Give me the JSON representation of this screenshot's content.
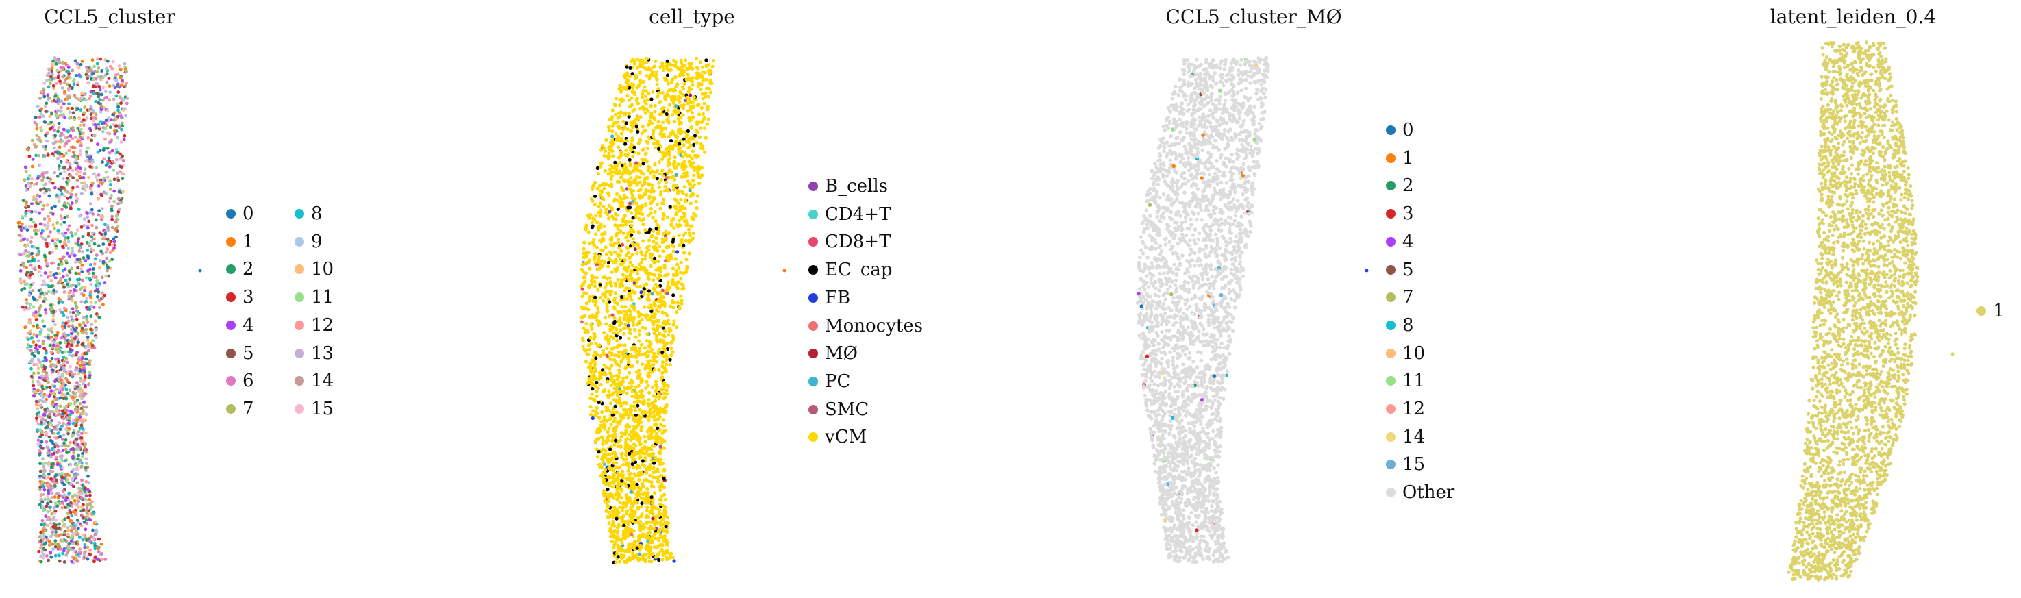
{
  "chart_data": [
    {
      "type": "scatter",
      "title": "CCL5_cluster",
      "legend_columns": 2,
      "legend": [
        {
          "label": "0",
          "color": "#1f77b4"
        },
        {
          "label": "1",
          "color": "#ff7f0e"
        },
        {
          "label": "2",
          "color": "#279e68"
        },
        {
          "label": "3",
          "color": "#d62728"
        },
        {
          "label": "4",
          "color": "#aa40fc"
        },
        {
          "label": "5",
          "color": "#8c564b"
        },
        {
          "label": "6",
          "color": "#e377c2"
        },
        {
          "label": "7",
          "color": "#b5bd61"
        },
        {
          "label": "8",
          "color": "#17becf"
        },
        {
          "label": "9",
          "color": "#aec7e8"
        },
        {
          "label": "10",
          "color": "#ffbb78"
        },
        {
          "label": "11",
          "color": "#98df8a"
        },
        {
          "label": "12",
          "color": "#ff9896"
        },
        {
          "label": "13",
          "color": "#c5b0d5"
        },
        {
          "label": "14",
          "color": "#c49c94"
        },
        {
          "label": "15",
          "color": "#f7b6d2"
        }
      ]
    },
    {
      "type": "scatter",
      "title": "cell_type",
      "legend_columns": 1,
      "legend": [
        {
          "label": "B_cells",
          "color": "#8e44ad"
        },
        {
          "label": "CD4+T",
          "color": "#48d1cc"
        },
        {
          "label": "CD8+T",
          "color": "#e8456b"
        },
        {
          "label": "EC_cap",
          "color": "#000000"
        },
        {
          "label": "FB",
          "color": "#1f3fe0"
        },
        {
          "label": "Monocytes",
          "color": "#f07070"
        },
        {
          "label": "MØ",
          "color": "#b22234"
        },
        {
          "label": "PC",
          "color": "#3fb3d0"
        },
        {
          "label": "SMC",
          "color": "#b5597a"
        },
        {
          "label": "vCM",
          "color": "#ffd700"
        }
      ]
    },
    {
      "type": "scatter",
      "title": "CCL5_cluster_MØ",
      "legend_columns": 1,
      "legend": [
        {
          "label": "0",
          "color": "#1f77b4"
        },
        {
          "label": "1",
          "color": "#ff7f0e"
        },
        {
          "label": "2",
          "color": "#279e68"
        },
        {
          "label": "3",
          "color": "#d62728"
        },
        {
          "label": "4",
          "color": "#aa40fc"
        },
        {
          "label": "5",
          "color": "#8c564b"
        },
        {
          "label": "7",
          "color": "#b5bd61"
        },
        {
          "label": "8",
          "color": "#17becf"
        },
        {
          "label": "10",
          "color": "#ffbb78"
        },
        {
          "label": "11",
          "color": "#98df8a"
        },
        {
          "label": "12",
          "color": "#ff9896"
        },
        {
          "label": "14",
          "color": "#f0d77a"
        },
        {
          "label": "15",
          "color": "#6baed6"
        },
        {
          "label": "Other",
          "color": "#dcdcdc"
        }
      ]
    },
    {
      "type": "scatter",
      "title": "latent_leiden_0.4",
      "legend_columns": 1,
      "legend": [
        {
          "label": "1",
          "color": "#dcd26a"
        }
      ]
    }
  ]
}
